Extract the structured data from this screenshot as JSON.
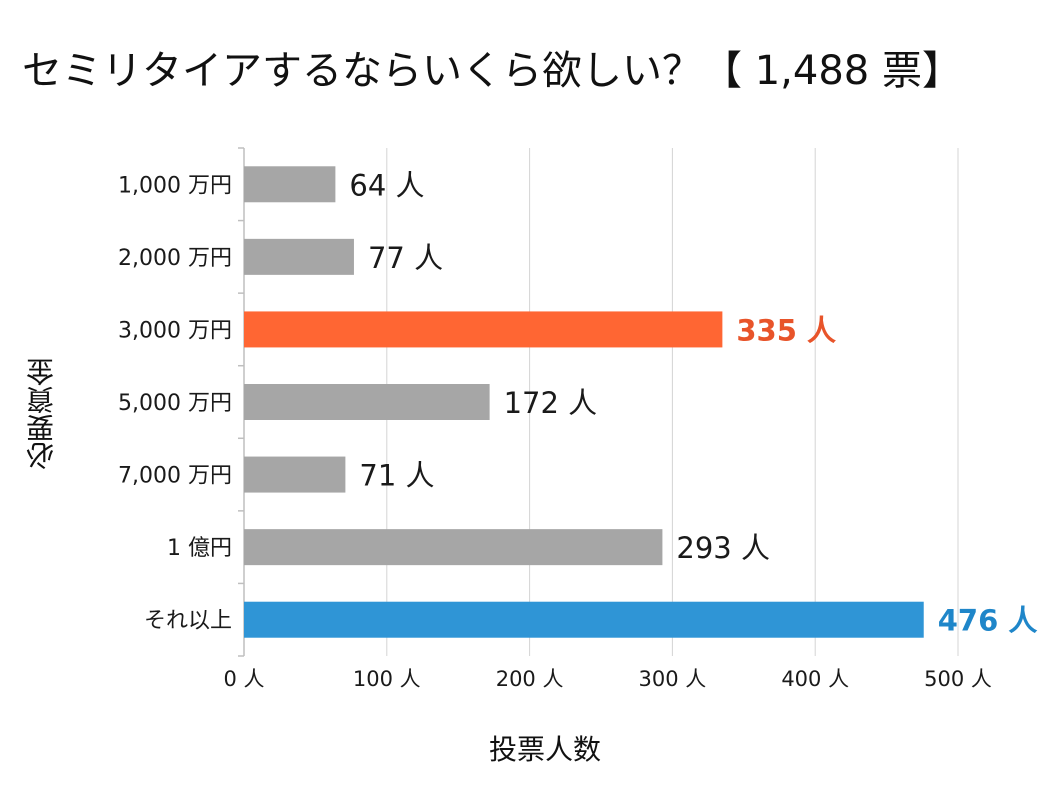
{
  "title": "セミリタイアするならいくら欲しい？【 1,488 票】",
  "chart_data": {
    "type": "bar",
    "orientation": "horizontal",
    "title": "セミリタイアするならいくら欲しい？【 1,488 票】",
    "xlabel": "投票人数",
    "ylabel": "必要資金",
    "categories": [
      "1,000 万円",
      "2,000 万円",
      "3,000 万円",
      "5,000 万円",
      "7,000 万円",
      "1 億円",
      "それ以上"
    ],
    "values": [
      64,
      77,
      335,
      172,
      71,
      293,
      476
    ],
    "value_labels": [
      "64 人",
      "77 人",
      "335 人",
      "172 人",
      "71 人",
      "293 人",
      "476 人"
    ],
    "xlim": [
      0,
      500
    ],
    "x_ticks": [
      0,
      100,
      200,
      300,
      400,
      500
    ],
    "x_tick_labels": [
      "0 人",
      "100 人",
      "200 人",
      "300 人",
      "400 人",
      "500 人"
    ],
    "grid": true,
    "colors": {
      "default": "#a6a6a6",
      "highlight_orange": "#ff6633",
      "highlight_blue": "#2f95d6",
      "label_orange": "#e8542a",
      "label_blue": "#1f86c9",
      "label_default": "#1a1a1a",
      "grid": "#d4d4d4",
      "axis": "#bfbfbf"
    },
    "bar_colors": [
      "default",
      "default",
      "highlight_orange",
      "default",
      "default",
      "default",
      "highlight_blue"
    ],
    "label_colors": [
      "label_default",
      "label_default",
      "label_orange",
      "label_default",
      "label_default",
      "label_default",
      "label_blue"
    ],
    "label_bold": [
      false,
      false,
      true,
      false,
      false,
      false,
      true
    ]
  }
}
